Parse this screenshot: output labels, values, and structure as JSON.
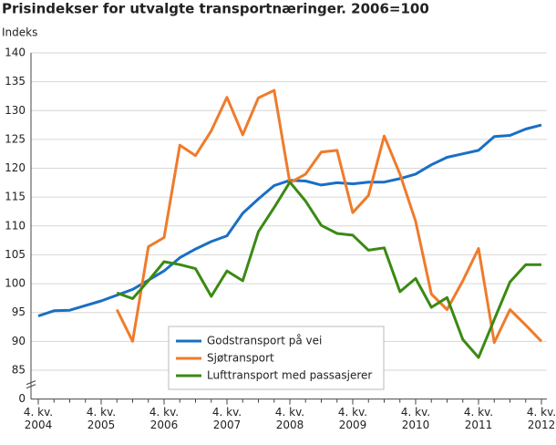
{
  "chart_data": {
    "type": "line",
    "title": "Prisindekser for utvalgte transportnæringer. 2006=100",
    "y_label": "Indeks",
    "categories": [
      "4. kv. 2004",
      null,
      null,
      null,
      "4. kv. 2005",
      null,
      null,
      null,
      "4. kv. 2006",
      null,
      null,
      null,
      "4. kv. 2007",
      null,
      null,
      null,
      "4. kv. 2008",
      null,
      null,
      null,
      "4. kv. 2009",
      null,
      null,
      null,
      "4. kv. 2010",
      null,
      null,
      null,
      "4. kv. 2011",
      null,
      null,
      null,
      "4. kv. 2012"
    ],
    "series": [
      {
        "name": "Godstransport på vei",
        "color": "#1a6fc4",
        "values": [
          94.4,
          95.3,
          95.4,
          96.2,
          97.0,
          98.0,
          99.0,
          100.6,
          102.2,
          104.5,
          106.0,
          107.3,
          108.3,
          112.2,
          114.7,
          117.0,
          117.9,
          117.8,
          117.1,
          117.5,
          117.3,
          117.6,
          117.6,
          118.2,
          119.0,
          120.6,
          121.9,
          122.5,
          123.1,
          125.5,
          125.7,
          126.8,
          127.5
        ]
      },
      {
        "name": "Sjøtransport",
        "color": "#ef7b2b",
        "values": [
          null,
          null,
          null,
          null,
          null,
          95.5,
          90.0,
          106.4,
          108.0,
          124.0,
          122.2,
          126.5,
          132.3,
          125.8,
          132.2,
          133.5,
          117.5,
          119.0,
          122.8,
          123.1,
          112.3,
          115.3,
          125.6,
          119.0,
          110.8,
          98.2,
          95.5,
          100.5,
          106.1,
          89.8,
          95.5,
          92.8,
          90.0
        ]
      },
      {
        "name": "Lufttransport med passasjerer",
        "color": "#3a8a12",
        "values": [
          null,
          null,
          null,
          null,
          null,
          98.4,
          97.4,
          100.5,
          103.8,
          103.3,
          102.6,
          97.8,
          102.2,
          100.5,
          109.0,
          113.2,
          117.6,
          114.3,
          110.1,
          108.7,
          108.4,
          105.8,
          106.2,
          98.6,
          100.9,
          95.9,
          97.6,
          90.3,
          87.2,
          93.8,
          100.3,
          103.3,
          103.3
        ]
      }
    ],
    "ylim": [
      80,
      140
    ],
    "yticks": [
      85,
      90,
      95,
      100,
      105,
      110,
      115,
      120,
      125,
      130,
      135,
      140
    ],
    "axis_break_tick": 0,
    "grid": true
  }
}
